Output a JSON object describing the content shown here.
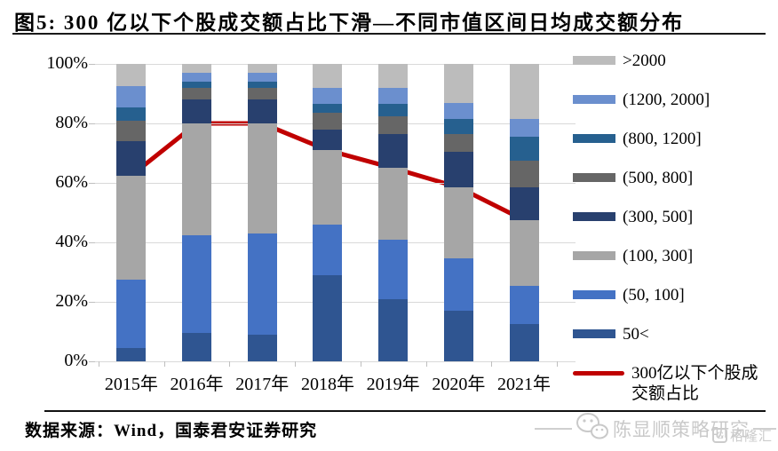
{
  "title": "图5: 300 亿以下个股成交额占比下滑—不同市值区间日均成交额分布",
  "footer": {
    "source": "数据来源：Wind，国泰君安证券研究"
  },
  "watermark": {
    "account": "陈显顺策略研究",
    "logo_text": "格隆汇",
    "logo_letter": "G"
  },
  "chart_data": {
    "type": "bar",
    "subtype": "stacked-percent-with-line",
    "title": "不同市值区间日均成交额分布",
    "categories": [
      "2015年",
      "2016年",
      "2017年",
      "2018年",
      "2019年",
      "2020年",
      "2021年"
    ],
    "series": [
      {
        "name": "50<",
        "color": "#2f5591",
        "values": [
          4.5,
          9.5,
          9,
          29,
          21,
          17,
          12.5
        ]
      },
      {
        "name": "(50, 100]",
        "color": "#4472c4",
        "values": [
          23,
          33,
          34,
          17,
          20,
          17.5,
          13
        ]
      },
      {
        "name": "(100, 300]",
        "color": "#a6a6a6",
        "values": [
          35,
          37.5,
          37,
          25,
          24,
          24,
          22
        ]
      },
      {
        "name": "(300, 500]",
        "color": "#28406e",
        "values": [
          11.5,
          8,
          8,
          7,
          11.5,
          12,
          11
        ]
      },
      {
        "name": "(500, 800]",
        "color": "#666666",
        "values": [
          7,
          4,
          4,
          5.5,
          6,
          6,
          9
        ]
      },
      {
        "name": "(800, 1200]",
        "color": "#26608f",
        "values": [
          4.5,
          2,
          2,
          3,
          4,
          5,
          8
        ]
      },
      {
        "name": "(1200, 2000]",
        "color": "#6b8fce",
        "values": [
          7,
          3,
          3,
          5.5,
          5.5,
          5.5,
          6
        ]
      },
      {
        "name": ">2000",
        "color": "#bcbcbc",
        "values": [
          7.5,
          3,
          3,
          8,
          8,
          13,
          18.5
        ]
      }
    ],
    "line": {
      "name": "300亿以下个股成交额占比",
      "color": "#c00000",
      "values": [
        62.5,
        80,
        80,
        71,
        65,
        58.5,
        47.5
      ]
    },
    "ylim": [
      0,
      100
    ],
    "yticks": [
      "0%",
      "20%",
      "40%",
      "60%",
      "80%",
      "100%"
    ],
    "grid": "horizontal",
    "legend_position": "right"
  }
}
